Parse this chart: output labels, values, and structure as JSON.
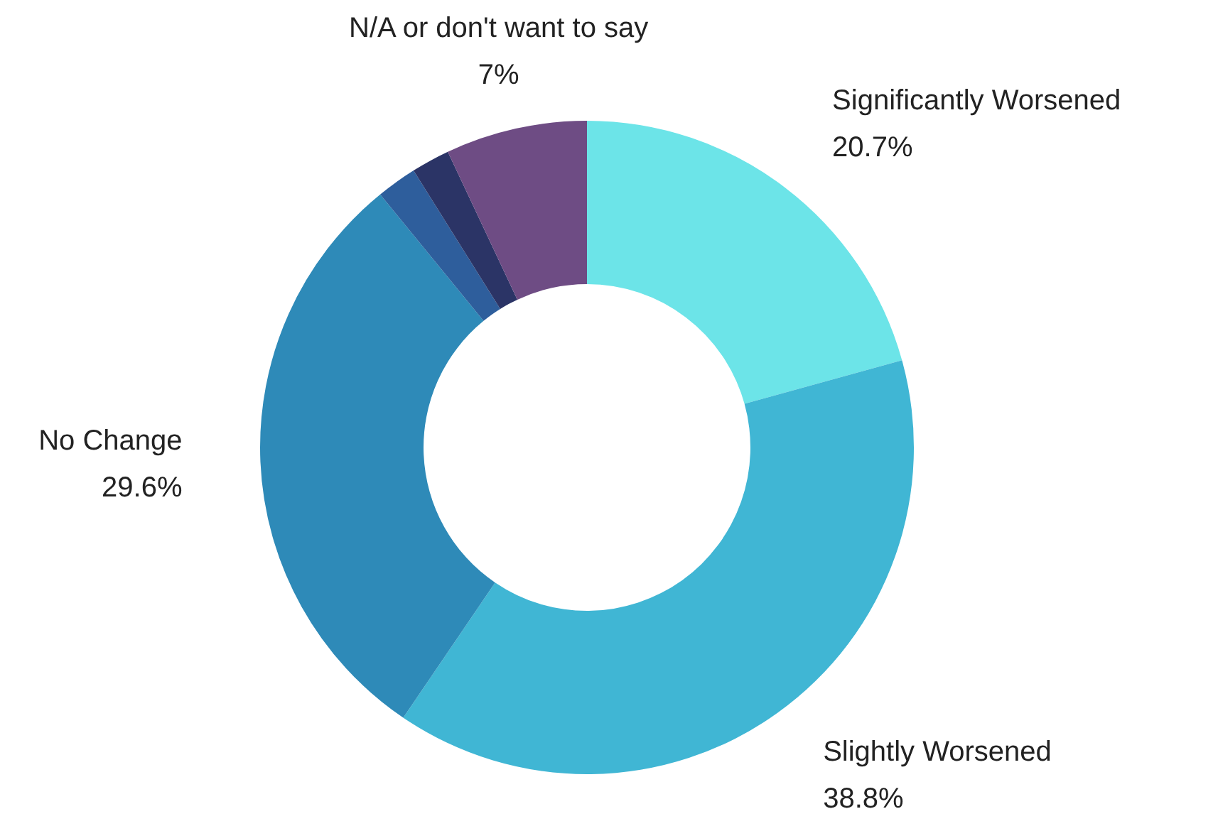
{
  "chart_data": {
    "type": "donut",
    "categories": [
      "Significantly Worsened",
      "Slightly Worsened",
      "No Change",
      null,
      null,
      "N/A or don't want to say"
    ],
    "values": [
      20.7,
      38.8,
      29.6,
      2.0,
      1.9,
      7
    ],
    "value_labels": [
      "20.7%",
      "38.8%",
      "29.6%",
      null,
      null,
      "7%"
    ],
    "colors": [
      "#6ce4e8",
      "#40b6d4",
      "#2e8ab8",
      "#2e5e9c",
      "#2b3466",
      "#6e4c84"
    ],
    "legend": false
  }
}
